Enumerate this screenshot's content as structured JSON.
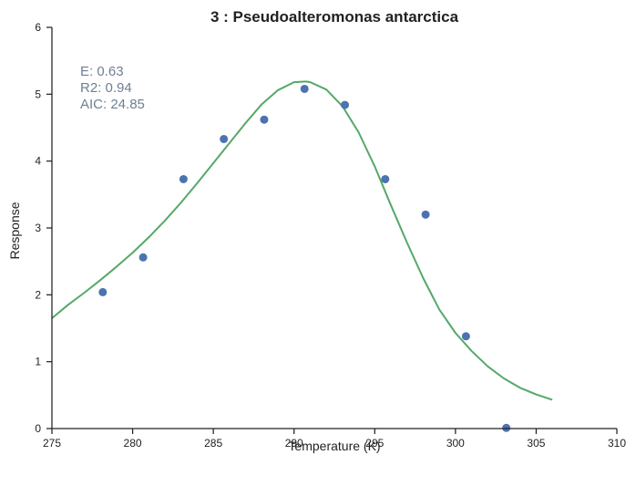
{
  "chart_data": {
    "type": "scatter",
    "title": "3 : Pseudoalteromonas antarctica",
    "xlabel": "Temperature (K)",
    "ylabel": "Response",
    "xlim": [
      275,
      310
    ],
    "ylim": [
      0,
      6
    ],
    "xticks": [
      275,
      280,
      285,
      290,
      295,
      300,
      305,
      310
    ],
    "yticks": [
      0,
      1,
      2,
      3,
      4,
      5,
      6
    ],
    "grid": false,
    "points": {
      "x": [
        278.15,
        280.65,
        283.15,
        285.65,
        288.15,
        290.65,
        293.15,
        295.65,
        298.15,
        300.65,
        303.15
      ],
      "y": [
        2.04,
        2.56,
        3.73,
        4.33,
        4.62,
        5.08,
        4.84,
        3.73,
        3.2,
        1.38,
        0.01
      ],
      "color": "#4c72b0"
    },
    "fit": {
      "x": [
        275,
        276,
        277,
        278,
        279,
        280,
        281,
        282,
        283,
        284,
        285,
        286,
        287,
        288,
        289,
        290,
        290.75,
        291,
        292,
        293,
        294,
        295,
        296,
        297,
        298,
        299,
        300,
        301,
        302,
        303,
        304,
        305,
        306
      ],
      "y": [
        1.65,
        1.85,
        2.03,
        2.22,
        2.42,
        2.63,
        2.86,
        3.11,
        3.38,
        3.67,
        3.97,
        4.27,
        4.57,
        4.85,
        5.06,
        5.18,
        5.19,
        5.18,
        5.07,
        4.82,
        4.43,
        3.92,
        3.34,
        2.78,
        2.25,
        1.78,
        1.43,
        1.16,
        0.93,
        0.75,
        0.61,
        0.51,
        0.43
      ],
      "color": "#55a868"
    },
    "annotations": {
      "line1": "E:  0.63",
      "line2": "R2:  0.94",
      "line3": "AIC: 24.85",
      "color": "#6f7f94"
    }
  }
}
